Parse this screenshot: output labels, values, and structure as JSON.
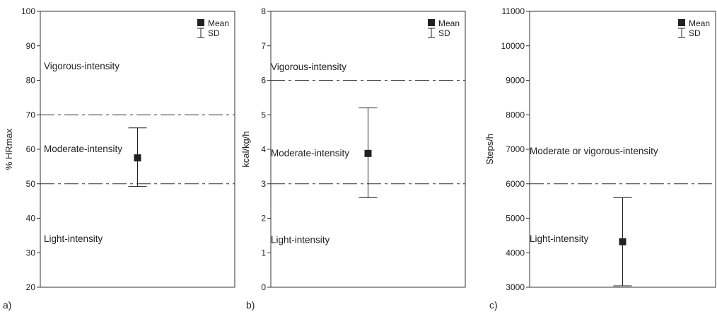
{
  "chart_data": [
    {
      "type": "errorbar",
      "panel_label": "a)",
      "ylabel": "% HRmax",
      "ylim": [
        20,
        100
      ],
      "yticks": [
        20,
        30,
        40,
        50,
        60,
        70,
        80,
        90,
        100
      ],
      "series": [
        {
          "name": "Mean",
          "values": [
            57.5
          ]
        },
        {
          "name": "SD",
          "lower": [
            49.2
          ],
          "upper": [
            66.2
          ]
        }
      ],
      "thresholds": [
        50,
        70
      ],
      "zones": [
        {
          "label": "Vigorous-intensity",
          "y": 84.2
        },
        {
          "label": "Moderate-intensity",
          "y": 60.2
        },
        {
          "label": "Light-intensity",
          "y": 34.2
        }
      ],
      "legend": {
        "position": "top-right",
        "items": [
          "Mean",
          "SD"
        ]
      },
      "grid": false
    },
    {
      "type": "errorbar",
      "panel_label": "b)",
      "ylabel": "kcal/kg/h",
      "ylim": [
        0,
        8
      ],
      "yticks": [
        0,
        1,
        2,
        3,
        4,
        5,
        6,
        7,
        8
      ],
      "series": [
        {
          "name": "Mean",
          "values": [
            3.88
          ]
        },
        {
          "name": "SD",
          "lower": [
            2.6
          ],
          "upper": [
            5.2
          ]
        }
      ],
      "thresholds": [
        3,
        6
      ],
      "zones": [
        {
          "label": "Vigorous-intensity",
          "y": 6.4
        },
        {
          "label": "Moderate-intensity",
          "y": 3.9
        },
        {
          "label": "Light-intensity",
          "y": 1.38
        }
      ],
      "legend": {
        "position": "top-right",
        "items": [
          "Mean",
          "SD"
        ]
      },
      "grid": false
    },
    {
      "type": "errorbar",
      "panel_label": "c)",
      "ylabel": "Steps/h",
      "ylim": [
        3000,
        11000
      ],
      "yticks": [
        3000,
        4000,
        5000,
        6000,
        7000,
        8000,
        9000,
        10000,
        11000
      ],
      "series": [
        {
          "name": "Mean",
          "values": [
            4320
          ]
        },
        {
          "name": "SD",
          "lower": [
            3040
          ],
          "upper": [
            5600
          ]
        }
      ],
      "thresholds": [
        6000
      ],
      "zones": [
        {
          "label": "Moderate or vigorous-intensity",
          "y": 6960
        },
        {
          "label": "Light-intensity",
          "y": 4420
        }
      ],
      "legend": {
        "position": "top-right",
        "items": [
          "Mean",
          "SD"
        ]
      },
      "grid": false
    }
  ]
}
